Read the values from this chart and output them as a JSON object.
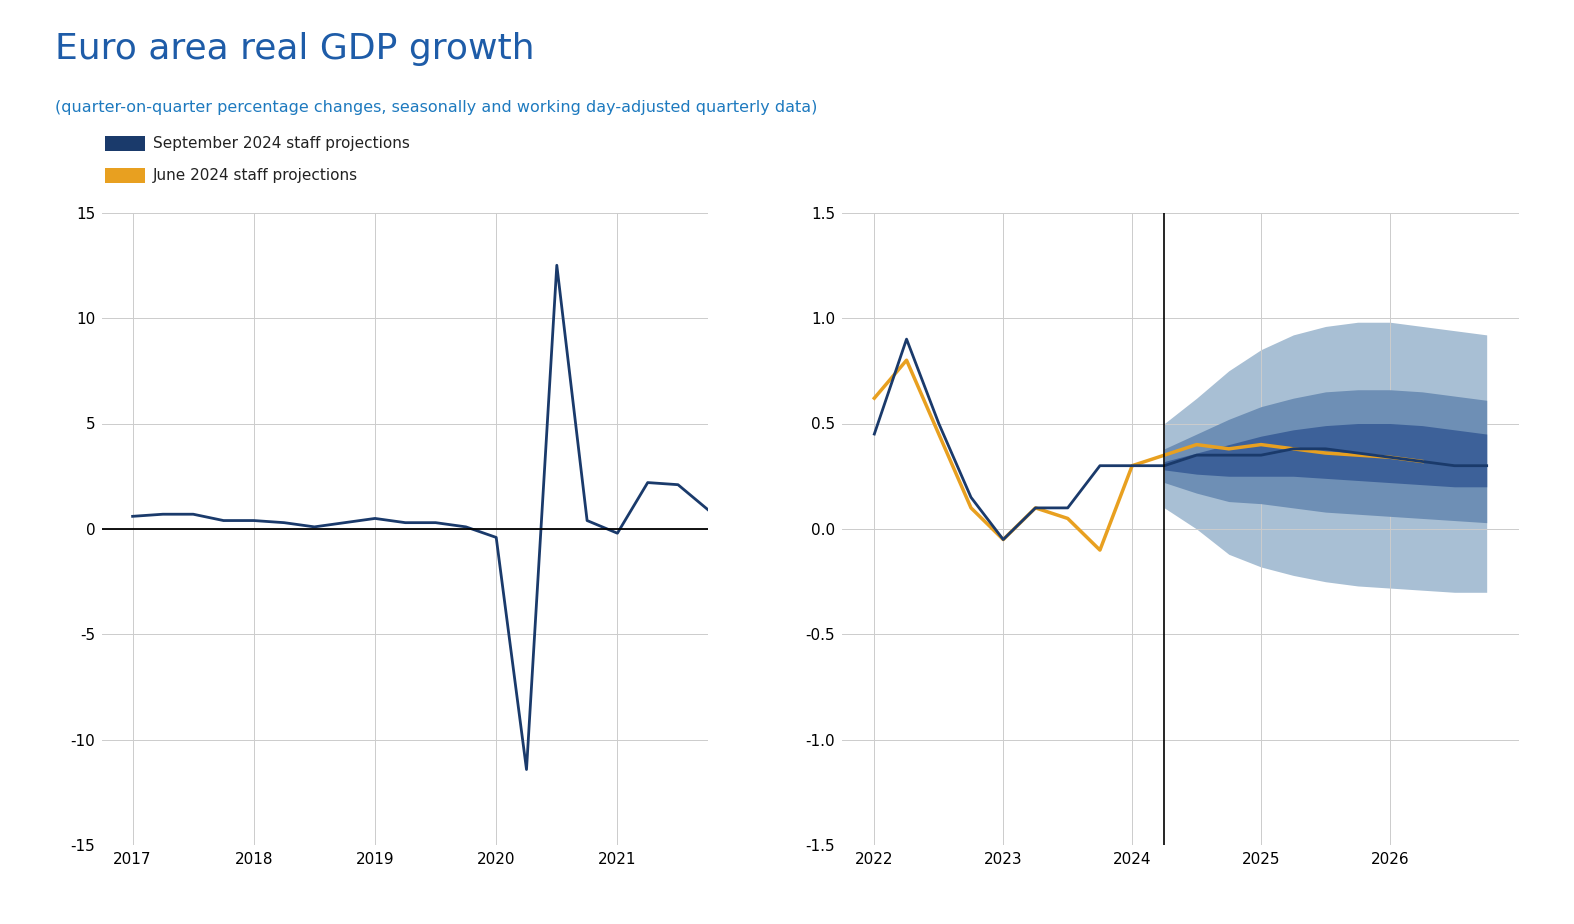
{
  "title": "Euro area real GDP growth",
  "subtitle": "(quarter-on-quarter percentage changes, seasonally and working day-adjusted quarterly data)",
  "title_color": "#1e5ca8",
  "subtitle_color": "#1e7abf",
  "legend": [
    "September 2024 staff projections",
    "June 2024 staff projections"
  ],
  "legend_colors": [
    "#1a3a6b",
    "#e8a020"
  ],
  "background_color": "#ffffff",
  "left_panel": {
    "xlim": [
      2016.75,
      2021.75
    ],
    "ylim": [
      -15,
      15
    ],
    "yticks": [
      -15,
      -10,
      -5,
      0,
      5,
      10,
      15
    ],
    "xticks": [
      2017,
      2018,
      2019,
      2020,
      2021
    ],
    "sept_x": [
      2017.0,
      2017.25,
      2017.5,
      2017.75,
      2018.0,
      2018.25,
      2018.5,
      2018.75,
      2019.0,
      2019.25,
      2019.5,
      2019.75,
      2020.0,
      2020.25,
      2020.5,
      2020.75,
      2021.0,
      2021.25,
      2021.5,
      2021.75
    ],
    "sept_y": [
      0.6,
      0.7,
      0.7,
      0.4,
      0.4,
      0.3,
      0.1,
      0.3,
      0.5,
      0.3,
      0.3,
      0.1,
      -0.4,
      -11.4,
      12.5,
      0.4,
      -0.2,
      2.2,
      2.1,
      0.9
    ]
  },
  "right_panel": {
    "xlim": [
      2021.75,
      2027.0
    ],
    "ylim": [
      -1.5,
      1.5
    ],
    "yticks": [
      -1.5,
      -1.0,
      -0.5,
      0.0,
      0.5,
      1.0,
      1.5
    ],
    "xticks": [
      2022,
      2023,
      2024,
      2025,
      2026
    ],
    "vline_x": 2024.25,
    "sept_x": [
      2022.0,
      2022.25,
      2022.5,
      2022.75,
      2023.0,
      2023.25,
      2023.5,
      2023.75,
      2024.0,
      2024.25,
      2024.5,
      2024.75,
      2025.0,
      2025.25,
      2025.5,
      2025.75,
      2026.0,
      2026.25,
      2026.5,
      2026.75
    ],
    "sept_y": [
      0.45,
      0.9,
      0.5,
      0.15,
      -0.05,
      0.1,
      0.1,
      0.3,
      0.3,
      0.3,
      0.35,
      0.35,
      0.35,
      0.38,
      0.38,
      0.36,
      0.34,
      0.32,
      0.3,
      0.3
    ],
    "june_x": [
      2022.0,
      2022.25,
      2022.5,
      2022.75,
      2023.0,
      2023.25,
      2023.5,
      2023.75,
      2024.0,
      2024.25,
      2024.5,
      2024.75,
      2025.0,
      2025.25,
      2025.5,
      2025.75,
      2026.0,
      2026.25
    ],
    "june_y": [
      0.62,
      0.8,
      0.45,
      0.1,
      -0.05,
      0.1,
      0.05,
      -0.1,
      0.3,
      0.35,
      0.4,
      0.38,
      0.4,
      0.38,
      0.36,
      0.35,
      0.34,
      0.32
    ],
    "fan_x": [
      2024.25,
      2024.5,
      2024.75,
      2025.0,
      2025.25,
      2025.5,
      2025.75,
      2026.0,
      2026.25,
      2026.5,
      2026.75
    ],
    "fan_p30_lo": [
      0.28,
      0.26,
      0.25,
      0.25,
      0.25,
      0.24,
      0.23,
      0.22,
      0.21,
      0.2,
      0.2
    ],
    "fan_p30_hi": [
      0.32,
      0.36,
      0.4,
      0.44,
      0.47,
      0.49,
      0.5,
      0.5,
      0.49,
      0.47,
      0.45
    ],
    "fan_p60_lo": [
      0.22,
      0.17,
      0.13,
      0.12,
      0.1,
      0.08,
      0.07,
      0.06,
      0.05,
      0.04,
      0.03
    ],
    "fan_p60_hi": [
      0.38,
      0.45,
      0.52,
      0.58,
      0.62,
      0.65,
      0.66,
      0.66,
      0.65,
      0.63,
      0.61
    ],
    "fan_p90_lo": [
      0.1,
      0.0,
      -0.12,
      -0.18,
      -0.22,
      -0.25,
      -0.27,
      -0.28,
      -0.29,
      -0.3,
      -0.3
    ],
    "fan_p90_hi": [
      0.5,
      0.62,
      0.75,
      0.85,
      0.92,
      0.96,
      0.98,
      0.98,
      0.96,
      0.94,
      0.92
    ]
  },
  "dark_blue": "#1a3a6b",
  "orange": "#e8a020",
  "fan_dark": "#3d6199",
  "fan_mid": "#6e8fb5",
  "fan_light": "#a8bfd4",
  "grid_color": "#cccccc",
  "rule_color": "#1a3a6b",
  "bottom_bar_color": "#1a3a6b"
}
